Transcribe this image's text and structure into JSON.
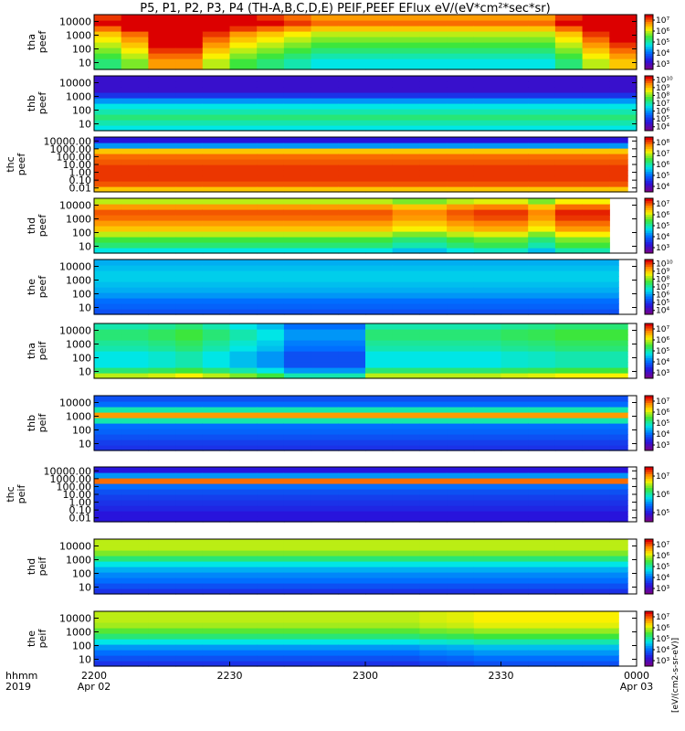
{
  "title": "P5, P1, P2, P3, P4 (TH-A,B,C,D,E) PEIF,PEEF EFlux eV/(eV*cm²*sec*sr)",
  "colorbar_axis_label": "[eV/(cm2-s-sr-eV)]",
  "chart_data": {
    "type": "heatmap",
    "x_axis": {
      "row_labels": [
        "hhmm",
        "2019"
      ],
      "ticks": [
        {
          "t": 0,
          "line1": "2200",
          "line2": "Apr 02"
        },
        {
          "t": 30,
          "line1": "2230",
          "line2": ""
        },
        {
          "t": 60,
          "line1": "2300",
          "line2": ""
        },
        {
          "t": 90,
          "line1": "2330",
          "line2": ""
        },
        {
          "t": 120,
          "line1": "0000",
          "line2": "Apr 03"
        }
      ],
      "range_minutes": [
        0,
        120
      ]
    },
    "colormap": "rainbow (purple-blue-cyan-green-yellow-red)",
    "panels": [
      {
        "probe": "tha",
        "product": "peef",
        "ylabel": "tha peef",
        "y_ticks": [
          "10",
          "100",
          "1000",
          "10000"
        ],
        "cbar_ticks": [
          "10³",
          "10⁴",
          "10⁵",
          "10⁶",
          "10⁷"
        ],
        "energy_levels": [
          0.5,
          0.5,
          0.55,
          0.6,
          0.65,
          0.7,
          0.75,
          0.85,
          0.95,
          0.9
        ],
        "time_mod": [
          0.05,
          0.15,
          0.35,
          0.35,
          0.2,
          0.1,
          0.05,
          0,
          -0.05,
          -0.05,
          -0.05,
          -0.05,
          -0.05,
          -0.05,
          -0.05,
          -0.05,
          -0.05,
          0.05,
          0.2,
          0.3
        ],
        "mask_end": 120
      },
      {
        "probe": "thb",
        "product": "peef",
        "ylabel": "thb peef",
        "y_ticks": [
          "10",
          "100",
          "1000",
          "10000"
        ],
        "cbar_ticks": [
          "10⁴",
          "10⁵",
          "10⁶",
          "10⁷",
          "10⁸",
          "10⁹",
          "10¹⁰"
        ],
        "energy_levels": [
          0.45,
          0.5,
          0.55,
          0.5,
          0.45,
          0.35,
          0.2,
          0.12,
          0.12,
          0.12
        ],
        "time_mod": [
          0,
          0,
          0,
          0,
          0,
          0,
          0,
          0,
          0,
          0,
          0,
          0,
          0,
          0,
          0,
          0,
          0,
          0,
          0,
          0
        ],
        "mask_end": 120
      },
      {
        "probe": "thc",
        "product": "peef",
        "ylabel": "thc peef",
        "y_ticks": [
          "0.01",
          "0.10",
          "1.00",
          "10.00",
          "100.00",
          "1000.00",
          "10000.00"
        ],
        "cbar_ticks": [
          "10⁴",
          "10⁵",
          "10⁶",
          "10⁷",
          "10⁸"
        ],
        "energy_levels": [
          0.8,
          0.92,
          0.95,
          0.95,
          0.95,
          0.92,
          0.9,
          0.8,
          0.35,
          0.15
        ],
        "time_mod": [
          0,
          0,
          0,
          0,
          0,
          0,
          0,
          0,
          0,
          0,
          0,
          0,
          0,
          0,
          0,
          0,
          0,
          0,
          0,
          0
        ],
        "mask_end": 118
      },
      {
        "probe": "thd",
        "product": "peef",
        "ylabel": "thd peef",
        "y_ticks": [
          "10",
          "100",
          "1000",
          "10000"
        ],
        "cbar_ticks": [
          "10³",
          "10⁴",
          "10⁵",
          "10⁶",
          "10⁷"
        ],
        "energy_levels": [
          0.45,
          0.55,
          0.6,
          0.7,
          0.8,
          0.85,
          0.9,
          0.92,
          0.85,
          0.7
        ],
        "time_mod": [
          0,
          0,
          0,
          0,
          0,
          0,
          0,
          0,
          0,
          0,
          0,
          -0.05,
          -0.05,
          0,
          0.03,
          0.03,
          -0.05,
          0.05,
          0.05,
          0.05
        ],
        "mask_end": 114
      },
      {
        "probe": "the",
        "product": "peef",
        "ylabel": "the peef",
        "y_ticks": [
          "10",
          "100",
          "1000",
          "10000"
        ],
        "cbar_ticks": [
          "10⁴",
          "10⁵",
          "10⁶",
          "10⁷",
          "10⁸",
          "10⁹",
          "10¹⁰"
        ],
        "energy_levels": [
          0.25,
          0.28,
          0.3,
          0.35,
          0.38,
          0.4,
          0.42,
          0.42,
          0.4,
          0.38
        ],
        "time_mod": [
          0,
          0,
          0,
          0,
          0,
          0,
          0,
          0,
          0,
          0,
          0,
          0,
          0,
          0,
          0,
          0,
          0,
          0,
          0,
          0
        ],
        "mask_end": 116
      },
      {
        "probe": "tha",
        "product": "peif",
        "ylabel": "tha peif",
        "y_ticks": [
          "10",
          "100",
          "1000",
          "10000"
        ],
        "cbar_ticks": [
          "10³",
          "10⁴",
          "10⁵",
          "10⁶",
          "10⁷"
        ],
        "energy_levels": [
          0.7,
          0.55,
          0.45,
          0.45,
          0.45,
          0.5,
          0.52,
          0.55,
          0.55,
          0.5
        ],
        "time_mod": [
          0,
          0,
          0.02,
          0.05,
          0,
          -0.05,
          -0.1,
          -0.2,
          -0.2,
          -0.2,
          0,
          0,
          0,
          0,
          0,
          0.02,
          0.03,
          0.05,
          0.05,
          0.05
        ],
        "mask_end": 118
      },
      {
        "probe": "thb",
        "product": "peif",
        "ylabel": "thb peif",
        "y_ticks": [
          "10",
          "100",
          "1000",
          "10000"
        ],
        "cbar_ticks": [
          "10³",
          "10⁴",
          "10⁵",
          "10⁶",
          "10⁷"
        ],
        "energy_levels": [
          0.2,
          0.22,
          0.25,
          0.28,
          0.3,
          0.5,
          0.85,
          0.5,
          0.3,
          0.25
        ],
        "time_mod": [
          0,
          0,
          0,
          0,
          0,
          0,
          0,
          0,
          0,
          0,
          0,
          0,
          0,
          0,
          0,
          0,
          0,
          0,
          0,
          0
        ],
        "mask_end": 118
      },
      {
        "probe": "thc",
        "product": "peif",
        "ylabel": "thc peif",
        "y_ticks": [
          "0.01",
          "0.10",
          "1.00",
          "10.00",
          "100.00",
          "1000.00",
          "10000.00"
        ],
        "cbar_ticks": [
          "10⁵",
          "10⁶",
          "10⁷"
        ],
        "energy_levels": [
          0.15,
          0.15,
          0.18,
          0.2,
          0.22,
          0.25,
          0.3,
          0.9,
          0.35,
          0.15
        ],
        "time_mod": [
          0,
          0,
          0,
          0,
          0,
          0,
          0,
          0,
          0,
          0,
          0,
          0,
          0,
          0,
          0,
          0,
          0,
          0,
          0,
          0
        ],
        "mask_end": 118
      },
      {
        "probe": "thd",
        "product": "peif",
        "ylabel": "thd peif",
        "y_ticks": [
          "10",
          "100",
          "1000",
          "10000"
        ],
        "cbar_ticks": [
          "10³",
          "10⁴",
          "10⁵",
          "10⁶",
          "10⁷"
        ],
        "energy_levels": [
          0.2,
          0.25,
          0.3,
          0.33,
          0.38,
          0.45,
          0.55,
          0.65,
          0.7,
          0.7
        ],
        "time_mod": [
          0,
          0,
          0,
          0,
          0,
          0,
          0,
          0,
          0,
          0,
          0,
          0,
          0,
          0,
          0,
          0,
          0,
          0,
          0,
          0
        ],
        "mask_end": 118
      },
      {
        "probe": "the",
        "product": "peif",
        "ylabel": "the peif",
        "y_ticks": [
          "10",
          "100",
          "1000",
          "10000"
        ],
        "cbar_ticks": [
          "10³",
          "10⁴",
          "10⁵",
          "10⁶",
          "10⁷"
        ],
        "energy_levels": [
          0.2,
          0.25,
          0.3,
          0.35,
          0.45,
          0.55,
          0.62,
          0.68,
          0.7,
          0.7
        ],
        "time_mod": [
          0,
          0,
          0,
          0,
          0,
          0,
          0,
          0,
          0,
          0,
          0,
          0,
          0.02,
          0.03,
          0.05,
          0.05,
          0.05,
          0.05,
          0.05,
          0.05
        ],
        "mask_end": 116
      }
    ]
  }
}
